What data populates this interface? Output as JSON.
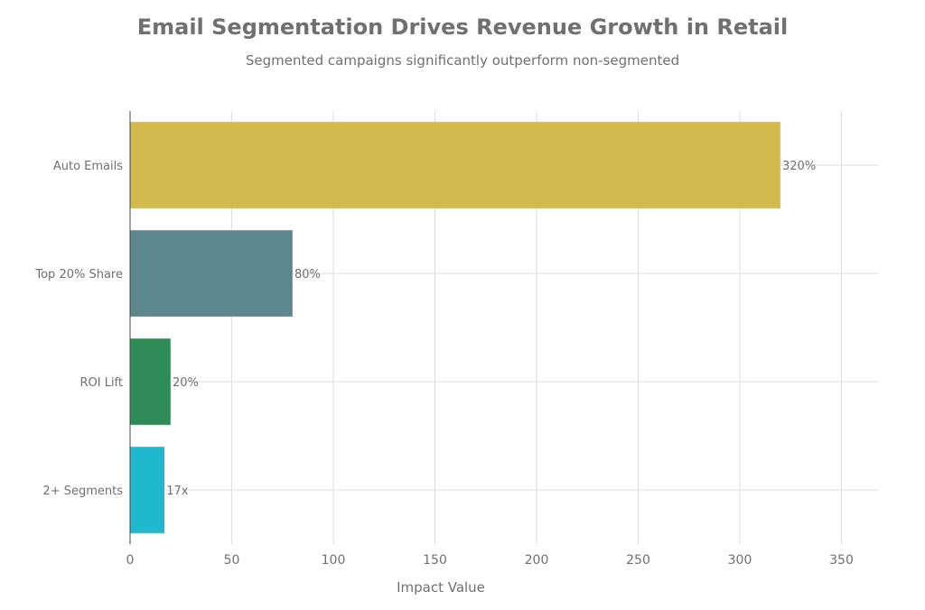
{
  "chart_data": {
    "type": "bar",
    "orientation": "horizontal",
    "title": "Email Segmentation Drives Revenue Growth in Retail",
    "subtitle": "Segmented campaigns significantly outperform non-segmented",
    "xlabel": "Impact Value",
    "ylabel": "",
    "xlim": [
      0,
      368
    ],
    "xticks": [
      0,
      50,
      100,
      150,
      200,
      250,
      300,
      350
    ],
    "grid": true,
    "categories": [
      "Auto Emails",
      "Top 20% Share",
      "ROI Lift",
      "2+ Segments"
    ],
    "values": [
      320,
      80,
      20,
      17
    ],
    "data_labels": [
      "320%",
      "80%",
      "20%",
      "17x"
    ],
    "colors": [
      "#D2BA4C",
      "#5D878F",
      "#2E8B57",
      "#1FB8CD"
    ]
  }
}
